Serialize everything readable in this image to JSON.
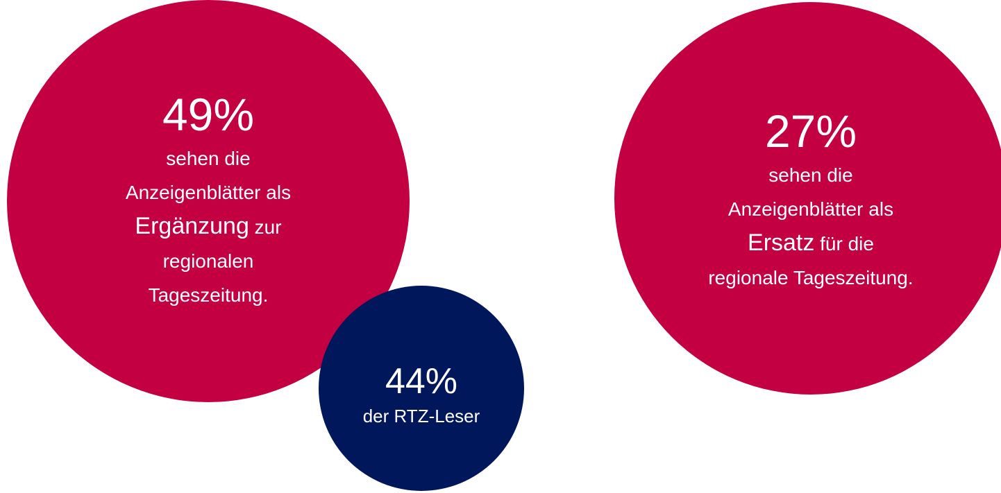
{
  "circles": [
    {
      "percent": "49%",
      "lines": [
        [
          "sehen die"
        ],
        [
          "Anzeigenblätter",
          " als"
        ],
        [
          "Ergänzung",
          " zur"
        ],
        [
          "regionalen"
        ],
        [
          "Tageszeitung."
        ]
      ]
    },
    {
      "percent": "44%",
      "lines": [
        [
          "der RTZ-Leser"
        ]
      ]
    },
    {
      "percent": "27%",
      "lines": [
        [
          "sehen die"
        ],
        [
          "Anzeigenblätter",
          " als"
        ],
        [
          "Ersatz",
          " für die"
        ],
        [
          "regionale Tageszeitung."
        ]
      ]
    }
  ]
}
